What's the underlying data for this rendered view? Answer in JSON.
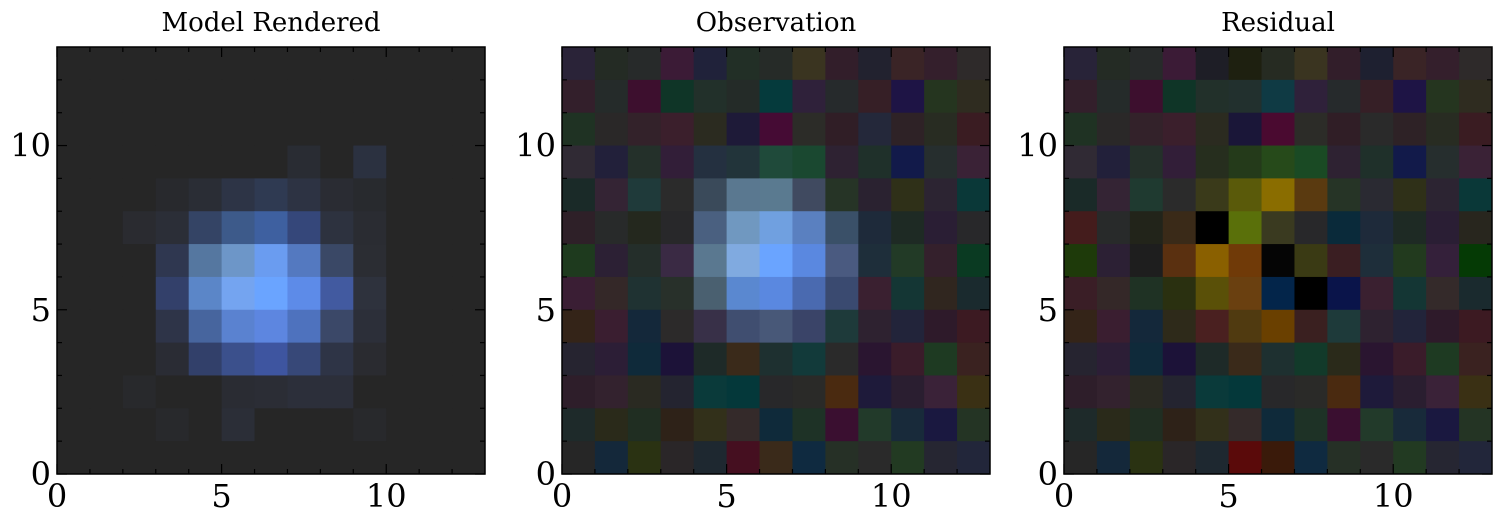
{
  "chart_data": [
    {
      "type": "image",
      "title": "Model Rendered",
      "xlim": [
        0,
        13
      ],
      "ylim": [
        0,
        13
      ],
      "xticks": [
        0,
        5,
        10
      ],
      "yticks": [
        0,
        5,
        10
      ],
      "xminor": [
        1,
        2,
        3,
        4,
        6,
        7,
        8,
        9,
        11,
        12
      ],
      "yminor": [
        1,
        2,
        3,
        4,
        6,
        7,
        8,
        9,
        11,
        12
      ],
      "pixels": [
        [
          "#262626",
          "#262626",
          "#262626",
          "#262626",
          "#262626",
          "#262626",
          "#262626",
          "#262626",
          "#262626",
          "#262626",
          "#262626",
          "#262626",
          "#262626"
        ],
        [
          "#262626",
          "#262626",
          "#262626",
          "#262626",
          "#262626",
          "#262626",
          "#262626",
          "#262626",
          "#262626",
          "#262626",
          "#262626",
          "#262626",
          "#262626"
        ],
        [
          "#262626",
          "#262626",
          "#262626",
          "#262626",
          "#262626",
          "#262626",
          "#262626",
          "#262626",
          "#262626",
          "#262626",
          "#262626",
          "#262626",
          "#262626"
        ],
        [
          "#262626",
          "#262626",
          "#262626",
          "#262626",
          "#262626",
          "#262626",
          "#262626",
          "#292c33",
          "#262626",
          "#2b3140",
          "#262626",
          "#262626",
          "#262626"
        ],
        [
          "#262626",
          "#262626",
          "#262626",
          "#28292d",
          "#2a2d35",
          "#2d3446",
          "#2f3a52",
          "#2d3343",
          "#2a2c33",
          "#282a2e",
          "#262626",
          "#262626",
          "#262626"
        ],
        [
          "#262626",
          "#262626",
          "#2a2b30",
          "#2b2e37",
          "#344465",
          "#3d5a8a",
          "#3e60a0",
          "#35477a",
          "#2d323f",
          "#2a2c32",
          "#262626",
          "#262626",
          "#262626"
        ],
        [
          "#262626",
          "#262626",
          "#262626",
          "#2f3750",
          "#5577a0",
          "#6d96c8",
          "#6a9cf0",
          "#5479c0",
          "#3a4866",
          "#2b2d33",
          "#262626",
          "#262626",
          "#262626"
        ],
        [
          "#262626",
          "#262626",
          "#262626",
          "#33406a",
          "#5b86c8",
          "#74a4f0",
          "#6aa4ff",
          "#5d8be8",
          "#425aa0",
          "#2e323d",
          "#262626",
          "#262626",
          "#262626"
        ],
        [
          "#262626",
          "#262626",
          "#262626",
          "#2e3448",
          "#47659e",
          "#5a82d0",
          "#5d86e0",
          "#4e72be",
          "#3b4868",
          "#2c2f39",
          "#262626",
          "#262626",
          "#262626"
        ],
        [
          "#262626",
          "#262626",
          "#262626",
          "#2a2c34",
          "#32406a",
          "#3b508c",
          "#3e55a0",
          "#374878",
          "#2e3446",
          "#2a2b30",
          "#262626",
          "#262626",
          "#262626"
        ],
        [
          "#262626",
          "#262626",
          "#28292c",
          "#262626",
          "#262626",
          "#2a2c33",
          "#2b2d35",
          "#2c2f3a",
          "#2c2f3a",
          "#262626",
          "#262626",
          "#262626",
          "#262626"
        ],
        [
          "#262626",
          "#262626",
          "#262626",
          "#28292c",
          "#262626",
          "#2b2e37",
          "#262626",
          "#262626",
          "#262626",
          "#28292c",
          "#262626",
          "#262626",
          "#262626"
        ],
        [
          "#262626",
          "#262626",
          "#262626",
          "#262626",
          "#262626",
          "#262626",
          "#262626",
          "#262626",
          "#262626",
          "#262626",
          "#262626",
          "#262626",
          "#262626"
        ]
      ]
    },
    {
      "type": "image",
      "title": "Observation",
      "xlim": [
        0,
        13
      ],
      "ylim": [
        0,
        13
      ],
      "xticks": [
        0,
        5,
        10
      ],
      "yticks": [
        0,
        5,
        10
      ],
      "xminor": [
        1,
        2,
        3,
        4,
        6,
        7,
        8,
        9,
        11,
        12
      ],
      "yminor": [
        1,
        2,
        3,
        4,
        6,
        7,
        8,
        9,
        11,
        12
      ],
      "pixels": [
        [
          "#2a2338",
          "#242b24",
          "#272a2a",
          "#3b1b36",
          "#20223a",
          "#222f26",
          "#262b28",
          "#3a3420",
          "#321e2a",
          "#22222f",
          "#3a2426",
          "#341f2c",
          "#2e2a2a"
        ],
        [
          "#331f2b",
          "#252b2a",
          "#3d0f2e",
          "#0f3527",
          "#22302a",
          "#242b28",
          "#053a3c",
          "#2f213a",
          "#262a2c",
          "#361f26",
          "#1e1445",
          "#25351f",
          "#2f2c20"
        ],
        [
          "#1f3223",
          "#2a2828",
          "#33222a",
          "#3b1f2c",
          "#2b2b20",
          "#1e1a38",
          "#450b34",
          "#2c2c28",
          "#301e26",
          "#24283a",
          "#2e2226",
          "#282c22",
          "#3a1c22"
        ],
        [
          "#302a34",
          "#22203a",
          "#24302a",
          "#321e38",
          "#243040",
          "#22343a",
          "#1f4a3a",
          "#1a4830",
          "#2e2232",
          "#1f302a",
          "#121a4a",
          "#262e2e",
          "#3a2236"
        ],
        [
          "#1a2a28",
          "#342434",
          "#1f3a3a",
          "#2b2b2b",
          "#3a4a5a",
          "#5a7890",
          "#5a7a90",
          "#404a60",
          "#263426",
          "#2a2230",
          "#2f3018",
          "#2c2432",
          "#0a3838"
        ],
        [
          "#2e2028",
          "#282a2a",
          "#24281e",
          "#28282a",
          "#4a6080",
          "#7098c0",
          "#70a0e0",
          "#5a80c0",
          "#3a5068",
          "#1e2a3a",
          "#1e2a24",
          "#2a1e34",
          "#28282a"
        ],
        [
          "#1e3a1e",
          "#2c2034",
          "#242e2a",
          "#3a2a44",
          "#5a7890",
          "#80aae0",
          "#6aa4ff",
          "#5a88e0",
          "#4a5a80",
          "#1e2e3a",
          "#223a26",
          "#34202c",
          "#0a3a22"
        ],
        [
          "#3a1e34",
          "#342828",
          "#1f3232",
          "#28302a",
          "#4a6070",
          "#5a88d0",
          "#5a88e0",
          "#4a6ab0",
          "#3a4a70",
          "#3a2030",
          "#143634",
          "#30261f",
          "#1a2a2e"
        ],
        [
          "#342418",
          "#3a1e30",
          "#14283a",
          "#2c2a2a",
          "#383048",
          "#404e70",
          "#485878",
          "#3a4468",
          "#1e3a3a",
          "#2e2230",
          "#22243a",
          "#2e1a2a",
          "#3c1a22"
        ],
        [
          "#262430",
          "#2c1e36",
          "#0f2a3a",
          "#1c1238",
          "#1e2a28",
          "#3a2a1a",
          "#1e3030",
          "#123a3a",
          "#2a2a2a",
          "#2a1530",
          "#3a1c2a",
          "#1e3a22",
          "#3a2220"
        ],
        [
          "#2e1e2a",
          "#33222e",
          "#2a2a22",
          "#242430",
          "#0a3a3a",
          "#04383a",
          "#28282a",
          "#2a2a28",
          "#4a2a10",
          "#1e1a3a",
          "#2a1e30",
          "#3a2238",
          "#3a3014"
        ],
        [
          "#1e2a2a",
          "#2a2a1a",
          "#202e22",
          "#2e2218",
          "#32301a",
          "#342a2a",
          "#0f2a3a",
          "#1e3226",
          "#3a0f30",
          "#223a2a",
          "#182a3a",
          "#1a1840",
          "#243424"
        ],
        [
          "#262626",
          "#14283a",
          "#2a3212",
          "#2a2628",
          "#1e2830",
          "#450f20",
          "#3a2a1a",
          "#0f2a40",
          "#263026",
          "#2a2a2a",
          "#223a22",
          "#262632",
          "#22263a"
        ]
      ]
    },
    {
      "type": "image",
      "title": "Residual",
      "xlim": [
        0,
        13
      ],
      "ylim": [
        0,
        13
      ],
      "xticks": [
        0,
        5,
        10
      ],
      "yticks": [
        0,
        5,
        10
      ],
      "xminor": [
        1,
        2,
        3,
        4,
        6,
        7,
        8,
        9,
        11,
        12
      ],
      "yminor": [
        1,
        2,
        3,
        4,
        6,
        7,
        8,
        9,
        11,
        12
      ],
      "pixels": [
        [
          "#282338",
          "#242b24",
          "#272a2a",
          "#3b1b36",
          "#1e1e26",
          "#1e2010",
          "#262b22",
          "#3a3420",
          "#321e2a",
          "#1e2030",
          "#3a2426",
          "#341f2c",
          "#2e2a2a"
        ],
        [
          "#331f2b",
          "#252b2a",
          "#3d0f2e",
          "#0f3527",
          "#22302a",
          "#22302e",
          "#0f3a44",
          "#2f213a",
          "#262a2c",
          "#361f26",
          "#1e1445",
          "#25351f",
          "#2f2c20"
        ],
        [
          "#1f3223",
          "#2a2828",
          "#33222a",
          "#3b1f2c",
          "#2b2b20",
          "#1a1638",
          "#4a0a30",
          "#2c2c28",
          "#301e26",
          "#2a2a2a",
          "#2e2226",
          "#282c22",
          "#3a1c22"
        ],
        [
          "#302a34",
          "#22203a",
          "#24302a",
          "#321e38",
          "#262e1e",
          "#243a1a",
          "#264a1a",
          "#1a4a24",
          "#2e2232",
          "#1f302a",
          "#121a4a",
          "#262e2e",
          "#3a2236"
        ],
        [
          "#1a2a28",
          "#342434",
          "#1f3a30",
          "#2b2b2b",
          "#3a3a1a",
          "#5a5a0a",
          "#8a6d00",
          "#5a3a10",
          "#263426",
          "#2a2a32",
          "#2f3018",
          "#2c2432",
          "#0a3838"
        ],
        [
          "#441c1c",
          "#282a2a",
          "#22241a",
          "#3a2a18",
          "#000000",
          "#5a700a",
          "#3a3a20",
          "#28282a",
          "#0a2a3a",
          "#1e2a3a",
          "#1e2a24",
          "#2a1e34",
          "#28261e"
        ],
        [
          "#1e3a0a",
          "#2c2034",
          "#1e1e1e",
          "#5a3010",
          "#8a6000",
          "#703a08",
          "#050505",
          "#3a3a14",
          "#3a1e22",
          "#1e2e3a",
          "#223a1e",
          "#34203a",
          "#053a05"
        ],
        [
          "#3a1e26",
          "#342828",
          "#1f3224",
          "#2a3010",
          "#5a5008",
          "#6a4010",
          "#03254a",
          "#000000",
          "#0a144a",
          "#3a2030",
          "#143634",
          "#342a2a",
          "#1a2a2e"
        ],
        [
          "#342418",
          "#3a1e30",
          "#14283a",
          "#2e2a1a",
          "#4a2020",
          "#503a10",
          "#6a4000",
          "#3a2020",
          "#1e3a3a",
          "#2e2230",
          "#22243a",
          "#2e1a2a",
          "#3c1a22"
        ],
        [
          "#262430",
          "#2c1e36",
          "#0f2a3a",
          "#1c1238",
          "#1e2a28",
          "#3a2a1a",
          "#1e3030",
          "#123a2a",
          "#2a2a1a",
          "#2a1530",
          "#3a1c2a",
          "#1e3a22",
          "#3a2220"
        ],
        [
          "#2e1e2a",
          "#33222e",
          "#2a2a22",
          "#242430",
          "#0a3a3a",
          "#04383a",
          "#28282a",
          "#2a2a28",
          "#4a2a10",
          "#1e1a3a",
          "#2a1e30",
          "#3a2238",
          "#3a3014"
        ],
        [
          "#1e2a2a",
          "#2a2a1a",
          "#202e22",
          "#2e2218",
          "#32301a",
          "#342a2a",
          "#0f2a3a",
          "#1e3226",
          "#3a0f30",
          "#223a2a",
          "#182a3a",
          "#1a1840",
          "#243424"
        ],
        [
          "#262626",
          "#14283a",
          "#2a3212",
          "#2a2628",
          "#1e2830",
          "#5a0a0a",
          "#3a1a0a",
          "#0f2a40",
          "#263026",
          "#2a2a2a",
          "#223a22",
          "#262632",
          "#22263a"
        ]
      ]
    }
  ]
}
